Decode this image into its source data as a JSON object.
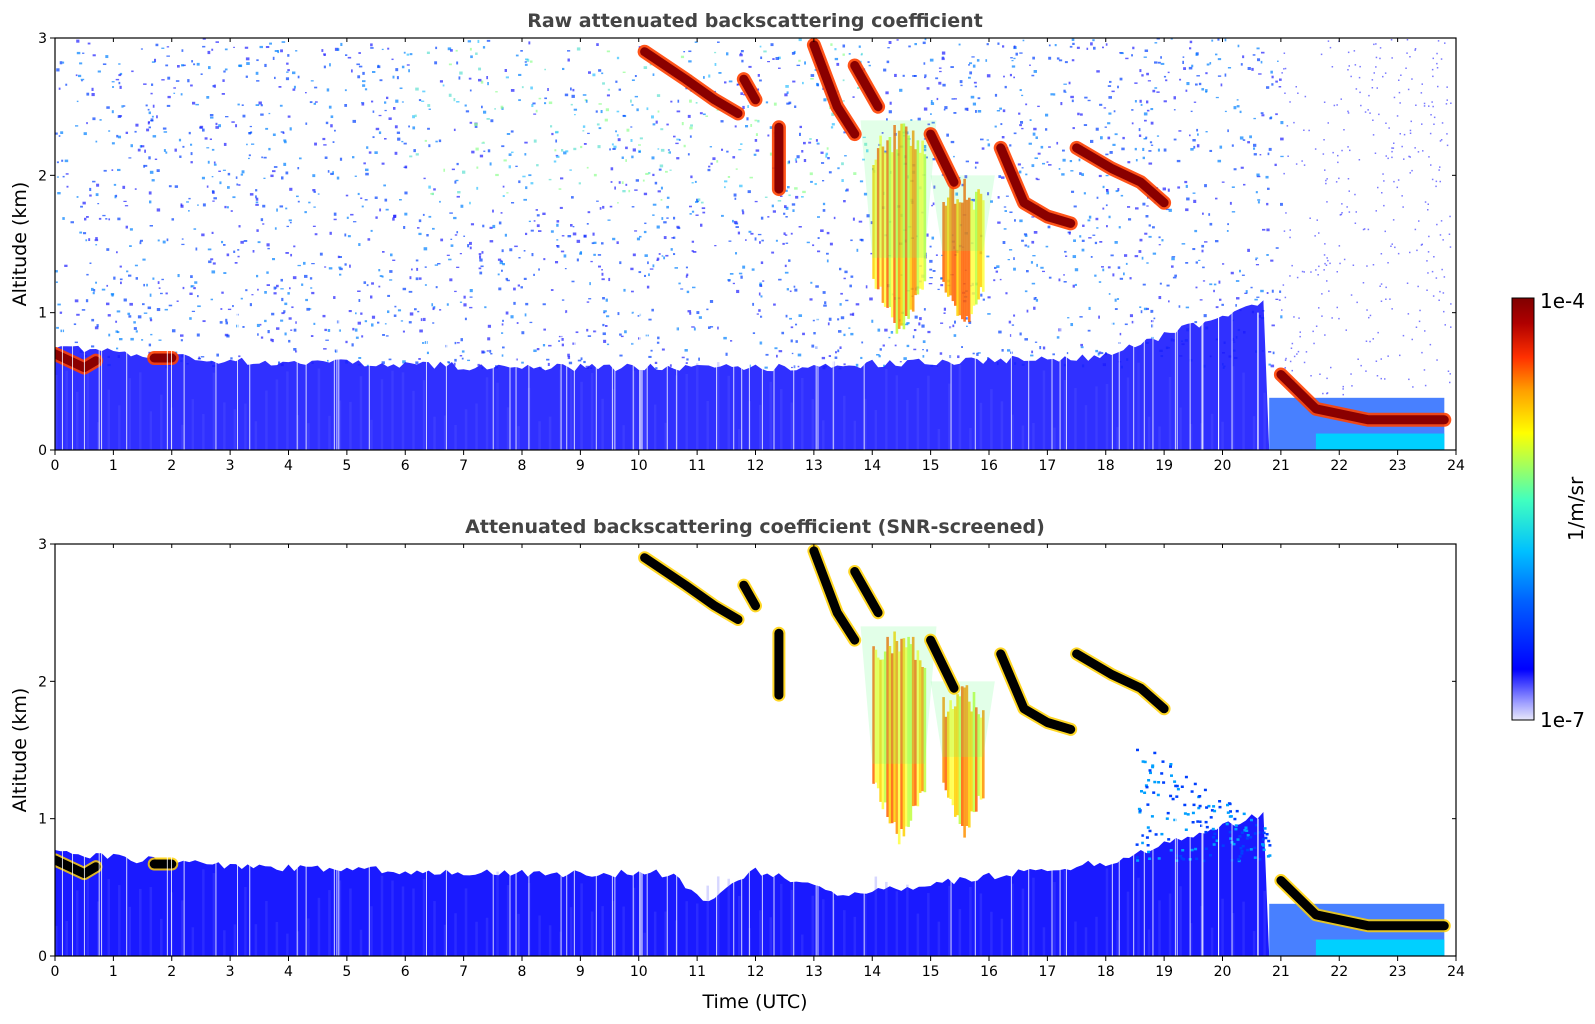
{
  "chart_data": [
    {
      "type": "heatmap",
      "title": "Raw attenuated backscattering coefficient",
      "xlabel": "",
      "ylabel": "Altitude (km)",
      "xlim": [
        0,
        24
      ],
      "ylim": [
        0,
        3
      ],
      "xticks": [
        "0",
        "1",
        "2",
        "3",
        "4",
        "5",
        "6",
        "7",
        "8",
        "9",
        "10",
        "11",
        "12",
        "13",
        "14",
        "15",
        "16",
        "17",
        "18",
        "19",
        "20",
        "21",
        "22",
        "23",
        "24"
      ],
      "yticks": [
        "0",
        "1",
        "2",
        "3"
      ],
      "colorscale": "jet (log)",
      "boundary_layer_top_km": [
        {
          "t": 0,
          "h": 0.75
        },
        {
          "t": 3,
          "h": 0.65
        },
        {
          "t": 8,
          "h": 0.6
        },
        {
          "t": 12,
          "h": 0.6
        },
        {
          "t": 18,
          "h": 0.68
        },
        {
          "t": 20.8,
          "h": 1.1
        }
      ],
      "cloud_layers": [
        {
          "points": [
            {
              "t": 10.1,
              "h": 2.9
            },
            {
              "t": 10.8,
              "h": 2.7
            },
            {
              "t": 11.3,
              "h": 2.55
            },
            {
              "t": 11.7,
              "h": 2.45
            }
          ],
          "value": "high"
        },
        {
          "points": [
            {
              "t": 11.8,
              "h": 2.7
            },
            {
              "t": 12.0,
              "h": 2.55
            }
          ],
          "value": "high"
        },
        {
          "points": [
            {
              "t": 12.4,
              "h": 2.35
            },
            {
              "t": 12.4,
              "h": 1.9
            }
          ],
          "value": "high"
        },
        {
          "points": [
            {
              "t": 13.0,
              "h": 2.95
            },
            {
              "t": 13.4,
              "h": 2.5
            },
            {
              "t": 13.7,
              "h": 2.3
            }
          ],
          "value": "high"
        },
        {
          "points": [
            {
              "t": 13.7,
              "h": 2.8
            },
            {
              "t": 14.1,
              "h": 2.5
            }
          ],
          "value": "high"
        },
        {
          "points": [
            {
              "t": 15.0,
              "h": 2.3
            },
            {
              "t": 15.4,
              "h": 1.95
            }
          ],
          "value": "high"
        },
        {
          "points": [
            {
              "t": 16.2,
              "h": 2.2
            },
            {
              "t": 16.6,
              "h": 1.8
            },
            {
              "t": 17.0,
              "h": 1.7
            },
            {
              "t": 17.4,
              "h": 1.65
            }
          ],
          "value": "high"
        },
        {
          "points": [
            {
              "t": 17.5,
              "h": 2.2
            },
            {
              "t": 18.1,
              "h": 2.05
            },
            {
              "t": 18.6,
              "h": 1.95
            },
            {
              "t": 19.0,
              "h": 1.8
            }
          ],
          "value": "high"
        },
        {
          "points": [
            {
              "t": 0.0,
              "h": 0.7
            },
            {
              "t": 0.5,
              "h": 0.6
            },
            {
              "t": 0.7,
              "h": 0.65
            }
          ],
          "value": "high"
        },
        {
          "points": [
            {
              "t": 1.7,
              "h": 0.67
            },
            {
              "t": 2.0,
              "h": 0.67
            }
          ],
          "value": "high"
        },
        {
          "points": [
            {
              "t": 21.0,
              "h": 0.55
            },
            {
              "t": 21.6,
              "h": 0.3
            },
            {
              "t": 22.5,
              "h": 0.22
            },
            {
              "t": 23.8,
              "h": 0.22
            }
          ],
          "value": "high"
        }
      ],
      "precipitation_columns": [
        {
          "t0": 14.0,
          "t1": 14.9,
          "top_km": 2.4,
          "bottom_km": 0.8,
          "value": "medium-high"
        },
        {
          "t0": 15.2,
          "t1": 15.9,
          "top_km": 2.0,
          "bottom_km": 0.85,
          "value": "medium"
        }
      ]
    },
    {
      "type": "heatmap",
      "title": "Attenuated backscattering coefficient (SNR-screened)",
      "xlabel": "Time (UTC)",
      "ylabel": "Altitude (km)",
      "xlim": [
        0,
        24
      ],
      "ylim": [
        0,
        3
      ],
      "xticks": [
        "0",
        "1",
        "2",
        "3",
        "4",
        "5",
        "6",
        "7",
        "8",
        "9",
        "10",
        "11",
        "12",
        "13",
        "14",
        "15",
        "16",
        "17",
        "18",
        "19",
        "20",
        "21",
        "22",
        "23",
        "24"
      ],
      "yticks": [
        "0",
        "1",
        "2",
        "3"
      ],
      "colorscale": "jet (log), saturated values shown in black, screened values blank",
      "boundary_layer_top_km": [
        {
          "t": 0,
          "h": 0.75
        },
        {
          "t": 3,
          "h": 0.65
        },
        {
          "t": 8,
          "h": 0.6
        },
        {
          "t": 10.5,
          "h": 0.6
        },
        {
          "t": 11.2,
          "h": 0.4
        },
        {
          "t": 12,
          "h": 0.62
        },
        {
          "t": 13.5,
          "h": 0.45
        },
        {
          "t": 18,
          "h": 0.68
        },
        {
          "t": 20.8,
          "h": 1.05
        }
      ]
    }
  ],
  "colorbar": {
    "label": "1/m/sr",
    "max_label": "1e-4",
    "min_label": "1e-7",
    "colors": [
      "#e8e8fa",
      "#a0a0ff",
      "#0000ff",
      "#0060ff",
      "#00c0ff",
      "#40ffc0",
      "#a0ff60",
      "#ffff00",
      "#ffa000",
      "#ff3000",
      "#b00000",
      "#800000"
    ]
  }
}
